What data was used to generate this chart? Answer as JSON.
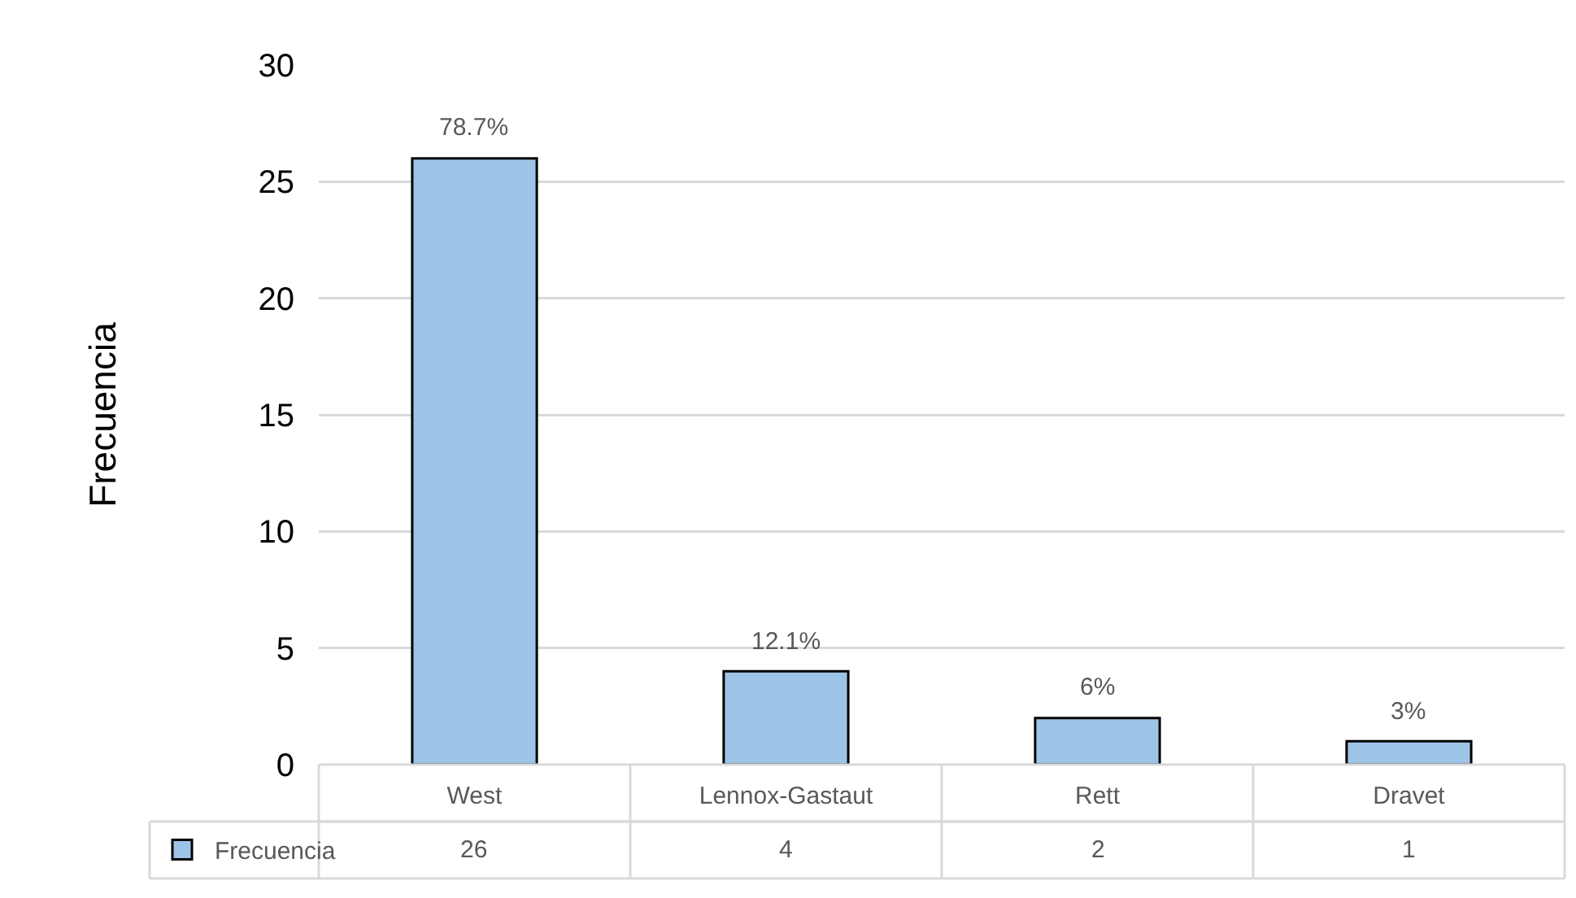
{
  "chart_data": {
    "type": "bar",
    "ylabel": "Frecuencia",
    "categories": [
      "West",
      "Lennox-Gastaut",
      "Rett",
      "Dravet"
    ],
    "series": [
      {
        "name": "Frecuencia",
        "color": "#9dc3e6",
        "values": [
          26,
          4,
          2,
          1
        ]
      }
    ],
    "ylim": [
      0,
      30
    ],
    "yticks": [
      0,
      5,
      10,
      15,
      20,
      25,
      30
    ],
    "annotations": [
      {
        "text": "78.7%",
        "x": "West",
        "y": 26
      },
      {
        "text": "12.1%",
        "x": "Lennox-Gastaut",
        "y": 4
      },
      {
        "text": "6%",
        "x": "Rett",
        "y": 2
      },
      {
        "text": "3%",
        "x": "Dravet",
        "y": 1
      }
    ],
    "grid": "y",
    "legend": "bottom left",
    "data_labels": true
  }
}
